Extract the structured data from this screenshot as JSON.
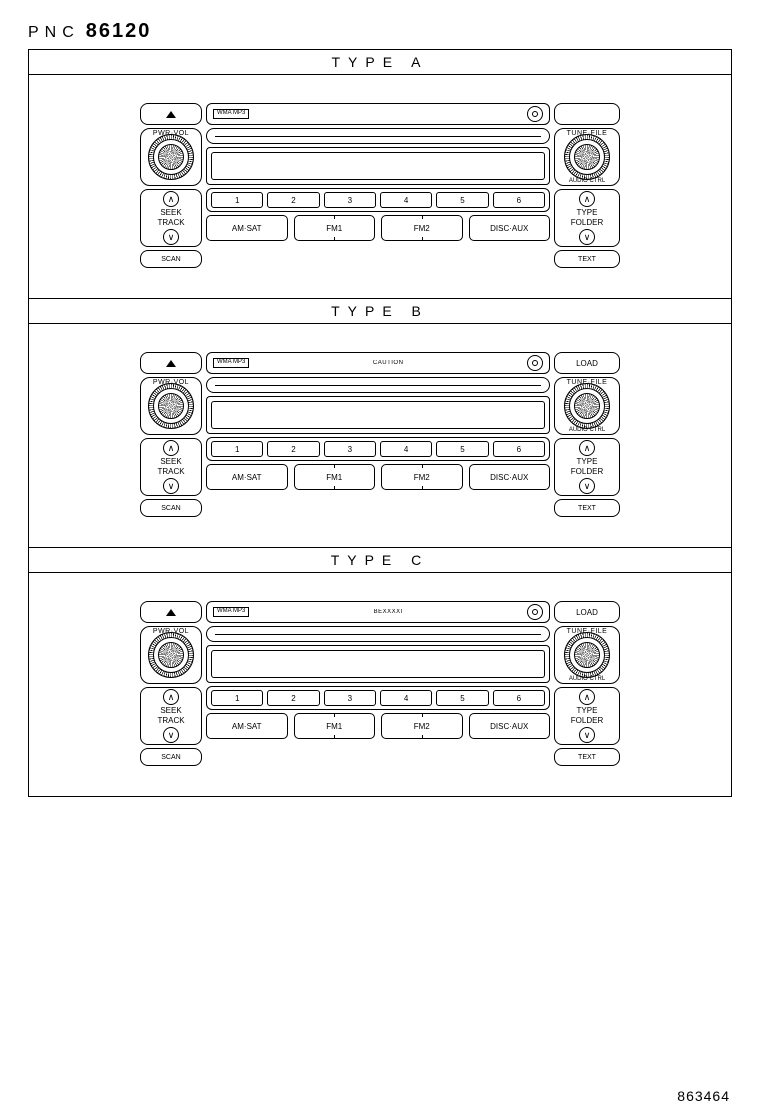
{
  "header": {
    "pnc_label": "PNC",
    "pnc_number": "86120"
  },
  "footer": {
    "doc_number": "863464"
  },
  "colors": {
    "line": "#000000",
    "bg": "#ffffff"
  },
  "shared": {
    "pwr_vol": "PWR·VOL",
    "tune_file": "TUNE·FILE",
    "audio_ctrl": "AUDIO CTRL",
    "seek": "SEEK",
    "track": "TRACK",
    "scan": "SCAN",
    "type": "TYPE",
    "folder": "FOLDER",
    "text": "TEXT",
    "load": "LOAD",
    "wma_mp3": "WMA\nMP3",
    "presets": [
      "1",
      "2",
      "3",
      "4",
      "5",
      "6"
    ],
    "bands": [
      "AM·SAT",
      "FM1",
      "FM2",
      "DISC·AUX"
    ],
    "caution_b": "CAUTION",
    "bexxxx_c": "BEXXXXI"
  },
  "sections": [
    {
      "title": "TYPE  A",
      "variant": "A"
    },
    {
      "title": "TYPE  B",
      "variant": "B"
    },
    {
      "title": "TYPE  C",
      "variant": "C"
    }
  ]
}
